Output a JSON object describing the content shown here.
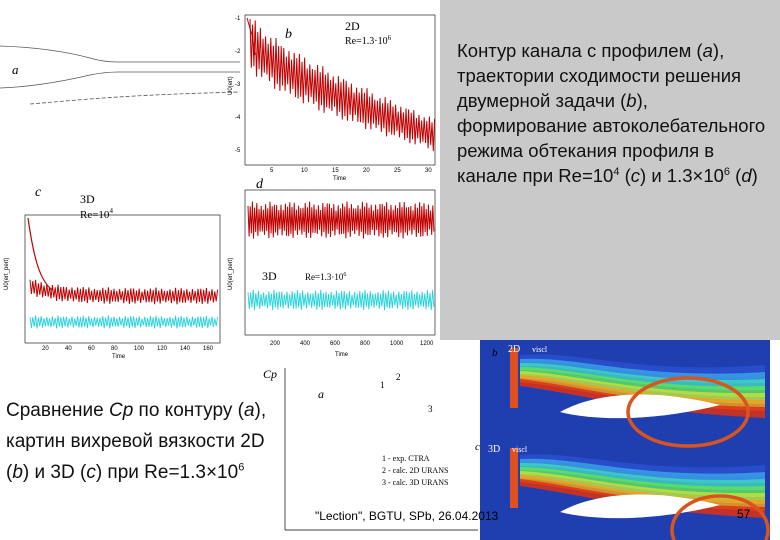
{
  "panel_a": {
    "label": "a"
  },
  "panel_b": {
    "label": "b",
    "dim": "2D",
    "re": "Re=1.3·10",
    "re_exp": "6",
    "y_axis": "U0(ert)",
    "x_axis": "Time",
    "yticks": [
      "-1",
      "-2",
      "-3",
      "-4",
      "-5"
    ],
    "xticks": [
      "5",
      "10",
      "15",
      "20",
      "25",
      "30"
    ]
  },
  "panel_c": {
    "label": "c",
    "dim": "3D",
    "re": "Re=10",
    "re_exp": "4",
    "y_axis": "U0(ert_pert)",
    "x_axis": "Time",
    "xticks": [
      "20",
      "40",
      "60",
      "80",
      "100",
      "120",
      "140",
      "160"
    ]
  },
  "panel_d": {
    "label": "d",
    "dim": "3D",
    "re": "Re=1.3·10",
    "re_exp": "6",
    "y_axis": "U0(ert_pert)",
    "x_axis": "Time",
    "xticks": [
      "200",
      "400",
      "600",
      "800",
      "1000",
      "1200"
    ]
  },
  "caption_right": [
    "Контур канала с профилем (",
    "a",
    "), траектории сходимости решения двумерной задачи (",
    "b",
    "), формирование автоколебательного режима обтекания профиля в канале при Re=10",
    "4",
    " (",
    "c",
    ") и 1.3×10",
    "6",
    " (",
    "d",
    ")"
  ],
  "caption_left": [
    "Сравнение ",
    "Cp",
    " по контуру (",
    "a",
    "), картин вихревой вязкости 2D (",
    "b",
    ") и 3D (",
    "c",
    ") при Re=1.3×10",
    "6"
  ],
  "cp_plot": {
    "label": "a",
    "y_axis": "Cp",
    "curve_labels": [
      "1",
      "2",
      "3"
    ],
    "legend": [
      "1 - exp. CTRA",
      "2 - calc. 2D URANS",
      "3 - calc. 3D URANS"
    ]
  },
  "contours": [
    {
      "label": "b",
      "dim": "2D",
      "field": "viscl"
    },
    {
      "label": "c",
      "dim": "3D",
      "field": "viscl"
    }
  ],
  "footer": "\"Lection\", BGTU, SPb, 26.04.2013",
  "page_number": "57"
}
